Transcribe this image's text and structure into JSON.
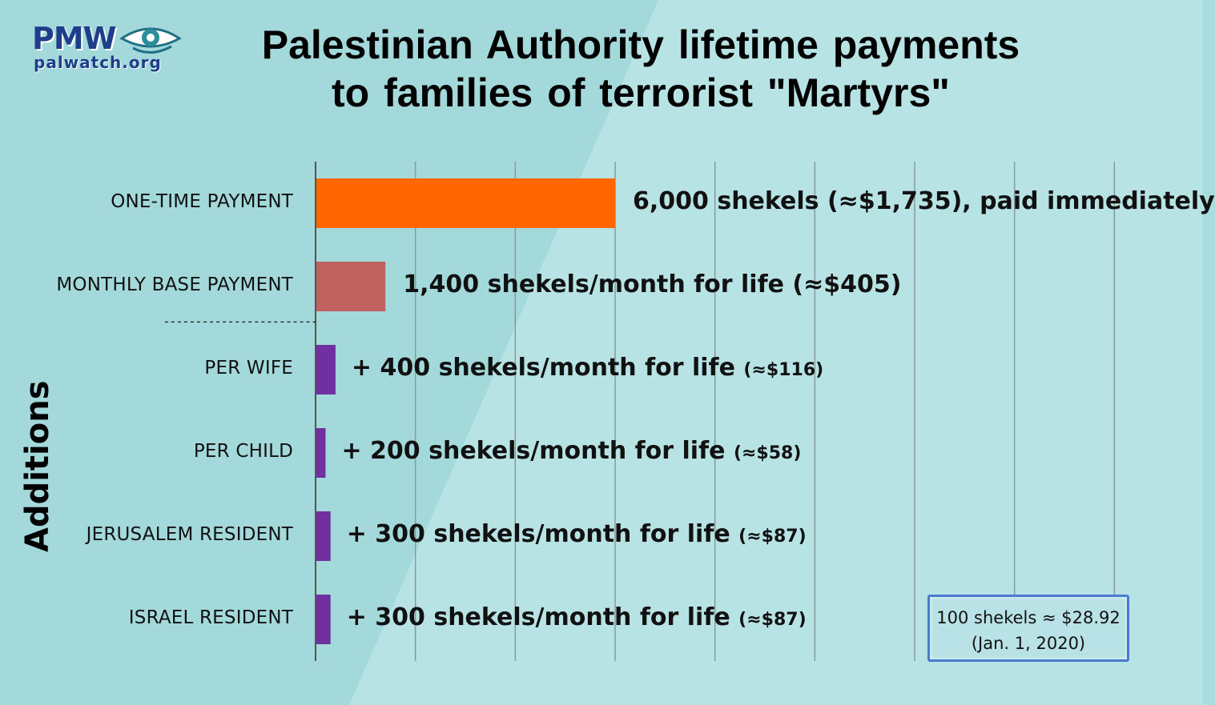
{
  "logo": {
    "brand": "PMW",
    "url": "palwatch.org",
    "icon": "eye-icon"
  },
  "title_lines": [
    "Palestinian Authority lifetime payments",
    "to families of terrorist \"Martyrs\""
  ],
  "group_label": "Additions",
  "divider": "------------------------",
  "note": {
    "line1": "100 shekels ≈ $28.92",
    "line2": "(Jan. 1, 2020)"
  },
  "colors": {
    "one_time": "#ff6600",
    "monthly_base": "#c0625f",
    "additions": "#7030a0",
    "background": "#a9dcdf"
  },
  "chart_data": {
    "type": "bar",
    "orientation": "horizontal",
    "categories": [
      "ONE-TIME PAYMENT",
      "MONTHLY BASE PAYMENT",
      "PER WIFE",
      "PER CHILD",
      "JERUSALEM RESIDENT",
      "ISRAEL RESIDENT"
    ],
    "values": [
      6000,
      1400,
      400,
      200,
      300,
      300
    ],
    "data_labels": [
      {
        "main": "6,000 shekels (≈$1,735), paid immediately",
        "small": ""
      },
      {
        "main": "1,400 shekels/month for life (≈$405)",
        "small": ""
      },
      {
        "main": "+ 400 shekels/month for life ",
        "small": "(≈$116)"
      },
      {
        "main": "+ 200 shekels/month for life ",
        "small": "(≈$58)"
      },
      {
        "main": "+ 300 shekels/month for life ",
        "small": "(≈$87)"
      },
      {
        "main": "+ 300 shekels/month for life ",
        "small": "(≈$87)"
      }
    ],
    "xlim": [
      0,
      18000
    ],
    "grid": true
  }
}
